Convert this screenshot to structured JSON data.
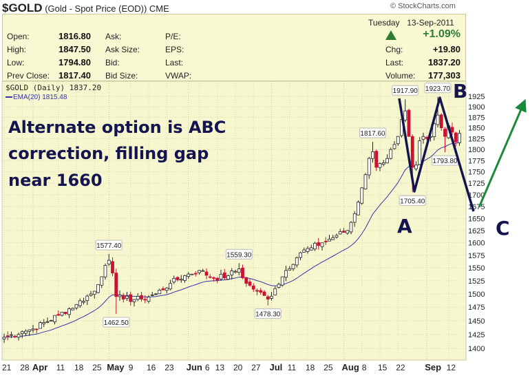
{
  "header": {
    "symbol": "$GOLD",
    "description": "(Gold - Spot Price (EOD))",
    "exchange": "CME",
    "credit": "© StockCharts.com"
  },
  "quote": {
    "open_label": "Open:",
    "open": "1816.80",
    "high_label": "High:",
    "high": "1847.50",
    "low_label": "Low:",
    "low": "1794.80",
    "prev_label": "Prev Close:",
    "prev": "1817.40",
    "ask_label": "Ask:",
    "ask_size_label": "Ask Size:",
    "bid_label": "Bid:",
    "bid_size_label": "Bid Size:",
    "pe_label": "P/E:",
    "eps_label": "EPS:",
    "last_label_mid": "Last:",
    "vwap_label": "VWAP:",
    "date": "Tuesday  13-Sep-2011",
    "pct": "+1.09%",
    "chg_label": "Chg:",
    "chg": "+19.80",
    "last_label": "Last:",
    "last": "1837.20",
    "volume_label": "Volume:",
    "volume": "177,303"
  },
  "colors": {
    "up": "#ffffff",
    "down": "#cc1133",
    "ema": "#3333aa",
    "annotation": "#141450",
    "arrow": "#1a8a3a",
    "pct": "#2e7d32"
  },
  "chart_data": {
    "type": "candlestick",
    "legend": {
      "series": "$GOLD (Daily) 1837.20",
      "ema": "EMA(20) 1815.48"
    },
    "yscale": "log",
    "ylim": [
      1390,
      1940
    ],
    "yticks": [
      "1925",
      "1900",
      "1875",
      "1850",
      "1825",
      "1800",
      "1775",
      "1750",
      "1725",
      "1700",
      "1675",
      "1650",
      "1625",
      "1600",
      "1575",
      "1550",
      "1525",
      "1500",
      "1475",
      "1450",
      "1425",
      "1400"
    ],
    "xticks": [
      {
        "t": 0,
        "label": "21"
      },
      {
        "t": 5,
        "label": "28"
      },
      {
        "t": 8,
        "label": "Apr",
        "bold": true
      },
      {
        "t": 15,
        "label": "11"
      },
      {
        "t": 20,
        "label": "18"
      },
      {
        "t": 25,
        "label": "25"
      },
      {
        "t": 29,
        "label": "May",
        "bold": true
      },
      {
        "t": 35,
        "label": "9"
      },
      {
        "t": 40,
        "label": "16"
      },
      {
        "t": 45,
        "label": "23"
      },
      {
        "t": 51,
        "label": "Jun",
        "bold": true
      },
      {
        "t": 54,
        "label": "6"
      },
      {
        "t": 59,
        "label": "13"
      },
      {
        "t": 64,
        "label": "20"
      },
      {
        "t": 69,
        "label": "27"
      },
      {
        "t": 74,
        "label": "Jul",
        "bold": true
      },
      {
        "t": 79,
        "label": "11"
      },
      {
        "t": 84,
        "label": "18"
      },
      {
        "t": 89,
        "label": "25"
      },
      {
        "t": 94,
        "label": "Aug",
        "bold": true
      },
      {
        "t": 99,
        "label": "8"
      },
      {
        "t": 104,
        "label": "15"
      },
      {
        "t": 109,
        "label": "22"
      },
      {
        "t": 117,
        "label": "Sep",
        "bold": true
      },
      {
        "t": 123,
        "label": "12"
      }
    ],
    "anchors": [
      [
        0,
        1420
      ],
      [
        5,
        1430
      ],
      [
        8,
        1435
      ],
      [
        15,
        1460
      ],
      [
        20,
        1480
      ],
      [
        25,
        1505
      ],
      [
        28,
        1555
      ],
      [
        29,
        1565
      ],
      [
        30,
        1540
      ],
      [
        31,
        1495
      ],
      [
        33,
        1490
      ],
      [
        38,
        1490
      ],
      [
        42,
        1500
      ],
      [
        46,
        1520
      ],
      [
        50,
        1535
      ],
      [
        54,
        1545
      ],
      [
        58,
        1530
      ],
      [
        62,
        1535
      ],
      [
        65,
        1548
      ],
      [
        67,
        1520
      ],
      [
        70,
        1505
      ],
      [
        73,
        1490
      ],
      [
        75,
        1510
      ],
      [
        78,
        1545
      ],
      [
        82,
        1580
      ],
      [
        85,
        1590
      ],
      [
        88,
        1600
      ],
      [
        92,
        1615
      ],
      [
        95,
        1625
      ],
      [
        97,
        1660
      ],
      [
        99,
        1715
      ],
      [
        101,
        1780
      ],
      [
        102,
        1795
      ],
      [
        103,
        1760
      ],
      [
        105,
        1770
      ],
      [
        107,
        1800
      ],
      [
        109,
        1830
      ],
      [
        110,
        1870
      ],
      [
        111,
        1890
      ],
      [
        112,
        1830
      ],
      [
        113,
        1760
      ],
      [
        114,
        1765
      ],
      [
        115,
        1820
      ],
      [
        116,
        1830
      ],
      [
        117,
        1825
      ],
      [
        118,
        1830
      ],
      [
        119,
        1860
      ],
      [
        120,
        1880
      ],
      [
        121,
        1850
      ],
      [
        122,
        1830
      ],
      [
        123,
        1855
      ],
      [
        124,
        1840
      ],
      [
        125,
        1817.4
      ],
      [
        126,
        1837.2
      ]
    ],
    "price_labels": [
      {
        "t": 29,
        "value": "1577.40",
        "pos": "above",
        "price": 1577.4
      },
      {
        "t": 31,
        "value": "1462.50",
        "pos": "below",
        "price": 1462.5
      },
      {
        "t": 65,
        "value": "1559.30",
        "pos": "above",
        "price": 1559.3
      },
      {
        "t": 73,
        "value": "1478.30",
        "pos": "below",
        "price": 1478.3
      },
      {
        "t": 102,
        "value": "1817.60",
        "pos": "above",
        "price": 1817.6
      },
      {
        "t": 111,
        "value": "1917.90",
        "pos": "above",
        "price": 1917.9
      },
      {
        "t": 113,
        "value": "1705.40",
        "pos": "below",
        "price": 1705.4
      },
      {
        "t": 120,
        "value": "1923.70",
        "pos": "above",
        "price": 1923.7
      },
      {
        "t": 122,
        "value": "1793.80",
        "pos": "below",
        "price": 1793.8
      }
    ],
    "annotation": {
      "text": [
        "Alternate option is ABC",
        "correction, filling gap",
        "near 1660"
      ],
      "A": "A",
      "B": "B",
      "C": "C"
    }
  }
}
